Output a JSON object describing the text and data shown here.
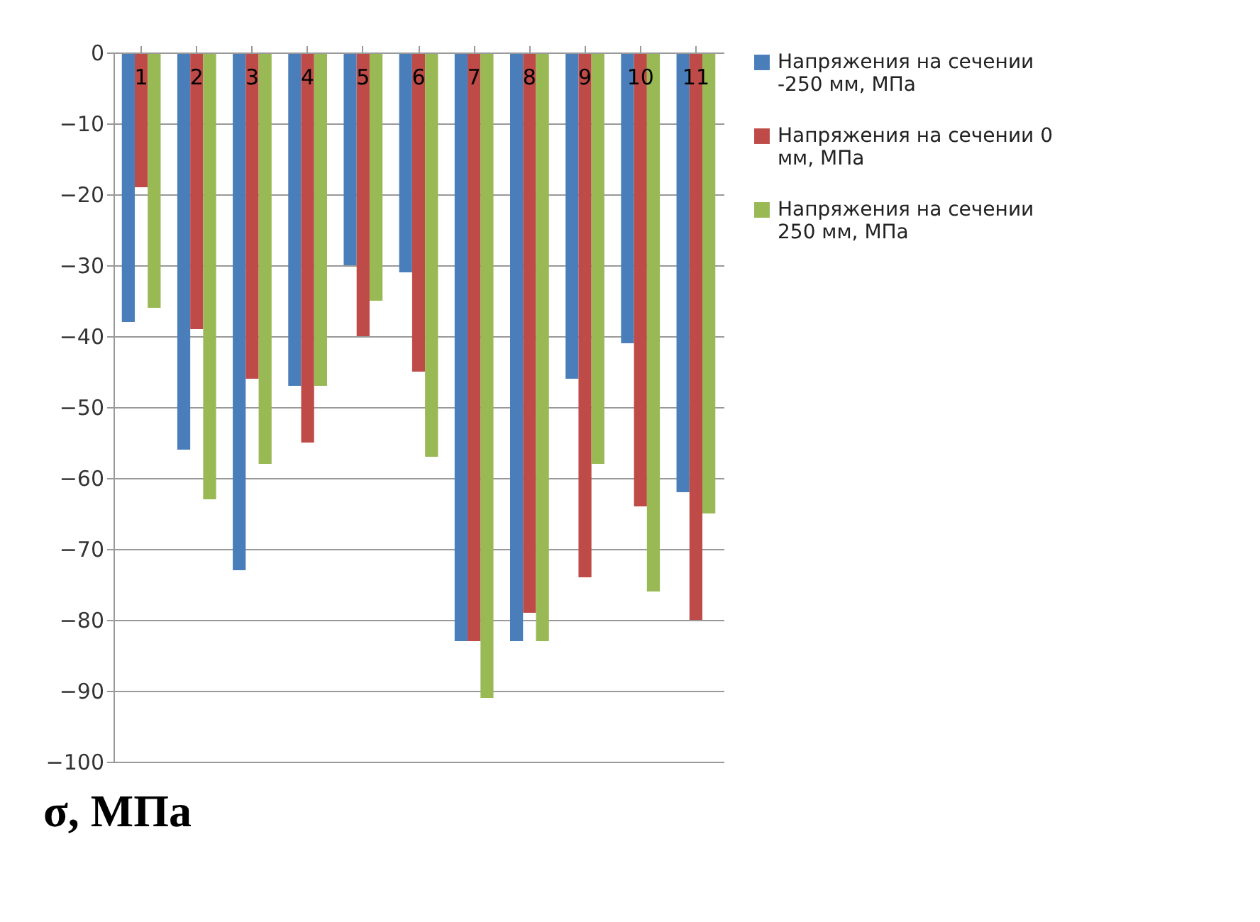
{
  "chart_data": {
    "type": "bar",
    "ylabel": "σ, МПа",
    "categories": [
      "1",
      "2",
      "3",
      "4",
      "5",
      "6",
      "7",
      "8",
      "9",
      "10",
      "11"
    ],
    "series": [
      {
        "name": "Напряжения на сечении -250 мм, МПа",
        "color": "#4a7ebb",
        "values": [
          -38,
          -56,
          -73,
          -47,
          -30,
          -31,
          -83,
          -83,
          -46,
          -41,
          -62
        ]
      },
      {
        "name": "Напряжения на сечении 0 мм, МПа",
        "color": "#be4b48",
        "values": [
          -19,
          -39,
          -46,
          -55,
          -40,
          -45,
          -83,
          -79,
          -74,
          -64,
          -80
        ]
      },
      {
        "name": "Напряжения на сечении 250 мм, МПа",
        "color": "#98b954",
        "values": [
          -36,
          -63,
          -58,
          -47,
          -35,
          -57,
          -91,
          -83,
          -58,
          -76,
          -65
        ]
      }
    ],
    "ylim": [
      -100,
      0
    ],
    "yticks": [
      0,
      -10,
      -20,
      -30,
      -40,
      -50,
      -60,
      -70,
      -80,
      -90,
      -100
    ],
    "grid": "y",
    "legend": "right"
  }
}
